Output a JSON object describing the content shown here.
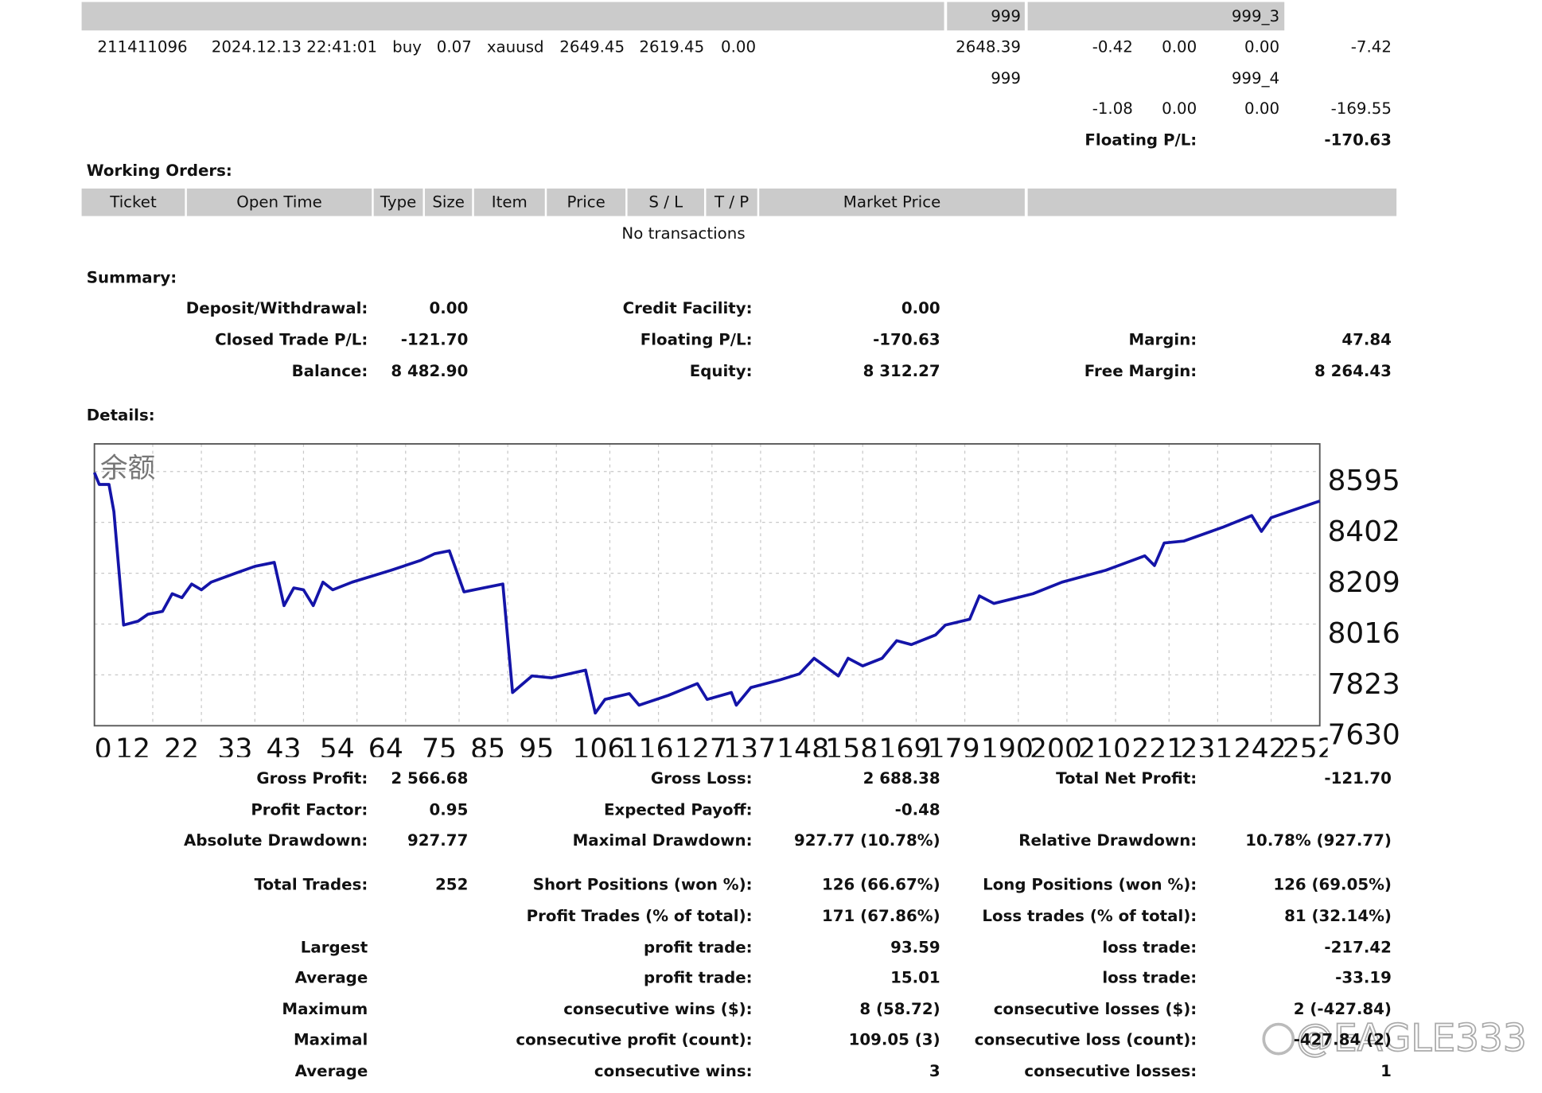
{
  "open_positions": {
    "rows": [
      [
        "999",
        "999_3"
      ],
      [
        "211411096",
        "2024.12.13 22:41:01",
        "buy",
        "0.07",
        "xauusd",
        "2649.45",
        "2619.45",
        "0.00",
        "2648.39",
        "-0.42",
        "0.00",
        "0.00",
        "-7.42"
      ],
      [
        "999",
        "999_4"
      ],
      [
        "-1.08",
        "0.00",
        "0.00",
        "-169.55"
      ]
    ],
    "floating_label": "Floating P/L:",
    "floating_value": "-170.63"
  },
  "working_orders": {
    "title": "Working Orders:",
    "columns": [
      "Ticket",
      "Open Time",
      "Type",
      "Size",
      "Item",
      "Price",
      "S / L",
      "T / P",
      "Market Price"
    ],
    "empty": "No transactions"
  },
  "summary": {
    "title": "Summary:",
    "rows": [
      [
        [
          "Deposit/Withdrawal:",
          "0.00"
        ],
        [
          "Credit Facility:",
          "0.00"
        ],
        null
      ],
      [
        [
          "Closed Trade P/L:",
          "-121.70"
        ],
        [
          "Floating P/L:",
          "-170.63"
        ],
        [
          "Margin:",
          "47.84"
        ]
      ],
      [
        [
          "Balance:",
          "8 482.90"
        ],
        [
          "Equity:",
          "8 312.27"
        ],
        [
          "Free Margin:",
          "8 264.43"
        ]
      ]
    ]
  },
  "details_title": "Details:",
  "chart_data": {
    "type": "line",
    "title": "余额",
    "color": "#1414a8",
    "grid": true,
    "x": [
      0,
      1,
      3,
      4,
      6,
      9,
      11,
      14,
      16,
      18,
      20,
      22,
      24,
      29,
      33,
      37,
      39,
      41,
      43,
      45,
      47,
      49,
      53,
      61,
      67,
      70,
      73,
      76,
      80,
      84,
      86,
      90,
      94,
      101,
      103,
      105,
      110,
      112,
      118,
      124,
      126,
      131,
      132,
      135,
      141,
      145,
      148,
      153,
      155,
      158,
      162,
      165,
      168,
      173,
      175,
      180,
      182,
      185,
      193,
      199,
      208,
      216,
      218,
      220,
      224,
      232,
      238,
      240,
      242,
      252
    ],
    "values": [
      8591,
      8546,
      8546,
      8443,
      8012,
      8027,
      8053,
      8064,
      8131,
      8116,
      8168,
      8146,
      8175,
      8209,
      8235,
      8250,
      8086,
      8153,
      8146,
      8086,
      8175,
      8146,
      8175,
      8220,
      8257,
      8283,
      8294,
      8138,
      8153,
      8168,
      7756,
      7819,
      7812,
      7841,
      7678,
      7730,
      7752,
      7708,
      7745,
      7790,
      7730,
      7756,
      7708,
      7775,
      7804,
      7827,
      7886,
      7819,
      7886,
      7857,
      7886,
      7953,
      7938,
      7975,
      8012,
      8034,
      8123,
      8094,
      8131,
      8175,
      8220,
      8275,
      8238,
      8324,
      8331,
      8383,
      8428,
      8368,
      8420,
      8483
    ],
    "xlim": [
      0,
      252
    ],
    "xticks": [
      0,
      12,
      22,
      33,
      43,
      54,
      64,
      75,
      85,
      95,
      106,
      116,
      127,
      137,
      148,
      158,
      169,
      179,
      190,
      200,
      210,
      221,
      231,
      242,
      252
    ],
    "ylim": [
      7630,
      8700
    ],
    "yticks": [
      7630,
      7823,
      8016,
      8209,
      8402,
      8595
    ]
  },
  "stats": {
    "rows": [
      [
        [
          "Gross Profit:",
          "2 566.68"
        ],
        [
          "Gross Loss:",
          "2 688.38"
        ],
        [
          "Total Net Profit:",
          "-121.70"
        ]
      ],
      [
        [
          "Profit Factor:",
          "0.95"
        ],
        [
          "Expected Payoff:",
          "-0.48"
        ],
        null
      ],
      [
        [
          "Absolute Drawdown:",
          "927.77"
        ],
        [
          "Maximal Drawdown:",
          "927.77 (10.78%)"
        ],
        [
          "Relative Drawdown:",
          "10.78% (927.77)"
        ]
      ],
      [
        [
          "Total Trades:",
          "252"
        ],
        [
          "Short Positions (won %):",
          "126 (66.67%)"
        ],
        [
          "Long Positions (won %):",
          "126 (69.05%)"
        ]
      ],
      [
        null,
        [
          "Profit Trades (% of total):",
          "171 (67.86%)"
        ],
        [
          "Loss trades (% of total):",
          "81 (32.14%)"
        ]
      ],
      [
        [
          "Largest"
        ],
        [
          "profit trade:",
          "93.59"
        ],
        [
          "loss trade:",
          "-217.42"
        ]
      ],
      [
        [
          "Average"
        ],
        [
          "profit trade:",
          "15.01"
        ],
        [
          "loss trade:",
          "-33.19"
        ]
      ],
      [
        [
          "Maximum"
        ],
        [
          "consecutive wins ($):",
          "8 (58.72)"
        ],
        [
          "consecutive losses ($):",
          "2 (-427.84)"
        ]
      ],
      [
        [
          "Maximal"
        ],
        [
          "consecutive profit (count):",
          "109.05 (3)"
        ],
        [
          "consecutive loss (count):",
          "-427.84 (2)"
        ]
      ],
      [
        [
          "Average"
        ],
        [
          "consecutive wins:",
          "3"
        ],
        [
          "consecutive losses:",
          "1"
        ]
      ]
    ]
  },
  "watermark": "@EAGLE333"
}
